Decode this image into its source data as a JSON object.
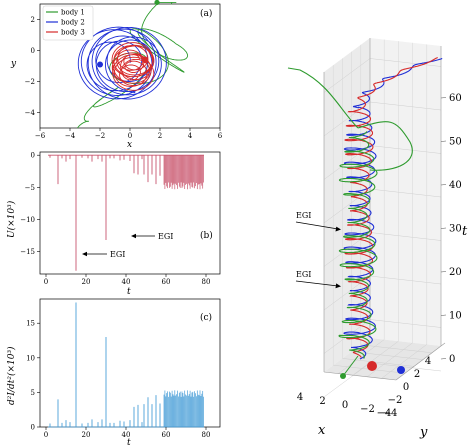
{
  "colors": {
    "body1": "#2e9b2e",
    "body2": "#1f2fd6",
    "body3": "#d62a2a",
    "U": "#c9566e",
    "d2I": "#4a9fd8"
  },
  "panel_a": {
    "label": "(a)",
    "xlabel": "x",
    "ylabel": "y",
    "xticks": [
      "−6",
      "−4",
      "−2",
      "0",
      "2",
      "4",
      "6"
    ],
    "yticks": [
      "2",
      "0",
      "−2",
      "−4"
    ],
    "legend": [
      "body 1",
      "body 2",
      "body 3"
    ]
  },
  "panel_b": {
    "label": "(b)",
    "ylabel": "U(×10³)",
    "xlabel": "t",
    "xticks": [
      "0",
      "20",
      "40",
      "60",
      "80"
    ],
    "yticks": [
      "0",
      "−5",
      "−10",
      "−15"
    ],
    "annotations": [
      "EGI",
      "EGI"
    ]
  },
  "panel_c": {
    "label": "(c)",
    "ylabel": "d²I/dt²(×10³)",
    "xlabel": "t",
    "xticks": [
      "0",
      "20",
      "40",
      "60",
      "80"
    ],
    "yticks": [
      "0",
      "5",
      "10",
      "15"
    ]
  },
  "panel_3d": {
    "xlabel": "x",
    "ylabel": "y",
    "zlabel": "t",
    "zticks": [
      "0",
      "10",
      "20",
      "30",
      "40",
      "50",
      "60"
    ],
    "xticks": [
      "4",
      "2",
      "0",
      "−2",
      "−4"
    ],
    "yticks": [
      "−4",
      "−2",
      "0",
      "2",
      "4"
    ],
    "annotations": [
      "EGI",
      "EGI"
    ]
  },
  "chart_data": [
    {
      "type": "line",
      "title": "",
      "xlabel": "x",
      "ylabel": "y",
      "xlim": [
        -6,
        6
      ],
      "ylim": [
        -5,
        3
      ],
      "series": [
        {
          "name": "body 1",
          "x": [
            -3.5,
            -2,
            -0.5,
            0.5,
            1,
            0.3,
            -0.6,
            0.2,
            1.2,
            2
          ],
          "y": [
            -5,
            -3,
            -1,
            0.6,
            2,
            1.6,
            0.4,
            -0.6,
            1.5,
            3.1
          ]
        },
        {
          "name": "body 2",
          "x": [
            -2,
            -1,
            0,
            1.5,
            2.5,
            1,
            -1,
            -2,
            0,
            1.5
          ],
          "y": [
            -0.9,
            -2,
            -2.5,
            -2.8,
            -0.5,
            1,
            0.5,
            -0.5,
            -1.5,
            -0.8
          ]
        },
        {
          "name": "body 3",
          "x": [
            -1,
            1,
            -0.5,
            1,
            0,
            1.2,
            0.8
          ],
          "y": [
            0,
            -0.5,
            -1,
            0.3,
            -2,
            -2.5,
            -0.6
          ]
        }
      ]
    },
    {
      "type": "bar",
      "title": "",
      "xlabel": "t",
      "ylabel": "U(×10³)",
      "xlim": [
        0,
        80
      ],
      "ylim": [
        -18.5,
        0.5
      ],
      "events": [
        {
          "t": 2,
          "value": -0.4
        },
        {
          "t": 6,
          "value": -4.5
        },
        {
          "t": 8,
          "value": -0.5
        },
        {
          "t": 10,
          "value": -1.0
        },
        {
          "t": 12,
          "value": -0.6
        },
        {
          "t": 15,
          "value": -18
        },
        {
          "t": 18,
          "value": -0.4
        },
        {
          "t": 21,
          "value": -0.5
        },
        {
          "t": 23,
          "value": -1.0
        },
        {
          "t": 26,
          "value": -0.6
        },
        {
          "t": 28,
          "value": -1.0
        },
        {
          "t": 30,
          "value": -13.2
        },
        {
          "t": 32,
          "value": -0.5
        },
        {
          "t": 34,
          "value": -0.5
        },
        {
          "t": 37,
          "value": -0.8
        },
        {
          "t": 39,
          "value": -0.7
        },
        {
          "t": 42,
          "value": -0.9
        },
        {
          "t": 44,
          "value": -2.8
        },
        {
          "t": 46,
          "value": -3.0
        },
        {
          "t": 48,
          "value": -0.6
        },
        {
          "t": 49,
          "value": -3.0
        },
        {
          "t": 51,
          "value": -4.2
        },
        {
          "t": 53,
          "value": -3.0
        },
        {
          "t": 55,
          "value": -4.5
        },
        {
          "t": 57,
          "value": -3.2
        }
      ],
      "dense_band": {
        "t_start": 59,
        "t_end": 79,
        "value_min": -5.3,
        "value_max": -0.6
      },
      "annotations": [
        {
          "text": "EGI",
          "t": 15,
          "value": -17
        },
        {
          "text": "EGI",
          "t": 30,
          "value": -11
        }
      ]
    },
    {
      "type": "bar",
      "title": "",
      "xlabel": "t",
      "ylabel": "d²I/dt²(×10³)",
      "xlim": [
        0,
        80
      ],
      "ylim": [
        0,
        18.5
      ],
      "events": [
        {
          "t": 2,
          "value": 0.5
        },
        {
          "t": 6,
          "value": 4.0
        },
        {
          "t": 8,
          "value": 0.6
        },
        {
          "t": 10,
          "value": 1.0
        },
        {
          "t": 12,
          "value": 0.7
        },
        {
          "t": 15,
          "value": 18
        },
        {
          "t": 18,
          "value": 0.5
        },
        {
          "t": 21,
          "value": 0.6
        },
        {
          "t": 23,
          "value": 1.1
        },
        {
          "t": 26,
          "value": 0.7
        },
        {
          "t": 28,
          "value": 1.1
        },
        {
          "t": 30,
          "value": 13
        },
        {
          "t": 32,
          "value": 0.6
        },
        {
          "t": 34,
          "value": 0.6
        },
        {
          "t": 37,
          "value": 0.9
        },
        {
          "t": 39,
          "value": 0.8
        },
        {
          "t": 42,
          "value": 1.0
        },
        {
          "t": 44,
          "value": 2.9
        },
        {
          "t": 46,
          "value": 3.2
        },
        {
          "t": 48,
          "value": 0.7
        },
        {
          "t": 49,
          "value": 3.3
        },
        {
          "t": 51,
          "value": 4.3
        },
        {
          "t": 53,
          "value": 3.3
        },
        {
          "t": 55,
          "value": 4.6
        },
        {
          "t": 57,
          "value": 3.4
        }
      ],
      "dense_band": {
        "t_start": 59,
        "t_end": 79,
        "value_min": 0.6,
        "value_max": 5.3
      }
    },
    {
      "type": "line",
      "title": "",
      "xlabel": "x",
      "ylabel": "y",
      "zlabel": "t",
      "zlim": [
        0,
        65
      ],
      "xlim": [
        -4,
        4
      ],
      "ylim": [
        -4,
        4
      ],
      "series": [
        {
          "name": "body 1",
          "t_end": 53
        },
        {
          "name": "body 2",
          "t_end": 70
        },
        {
          "name": "body 3",
          "t_end": 70
        }
      ],
      "annotations": [
        {
          "text": "EGI",
          "t": 30
        },
        {
          "text": "EGI",
          "t": 17
        }
      ]
    }
  ]
}
